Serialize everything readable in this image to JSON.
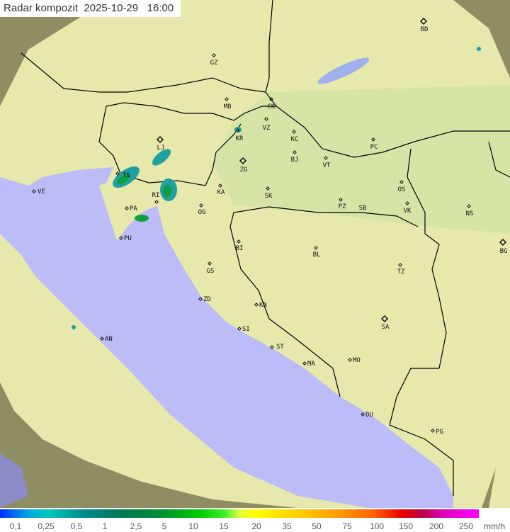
{
  "title": {
    "product": "Radar kompozit",
    "date": "2025-10-29",
    "time": "16:00"
  },
  "colors": {
    "sea": "#bcbcf8",
    "land_in_range": "#e6e8ac",
    "land_out_of_range": "#8e8e62",
    "border": "#000000",
    "echo_teal": "#20a0a0",
    "echo_green": "#10a040"
  },
  "cities": [
    "GZ",
    "BD",
    "MB",
    "CK",
    "VZ",
    "KR",
    "KC",
    "LJ",
    "PC",
    "ZG",
    "BJ",
    "VT",
    "TS",
    "VE",
    "RI",
    "KA",
    "SK",
    "OS",
    "VK",
    "NS",
    "PZ",
    "SB",
    "PA",
    "OG",
    "PU",
    "BI",
    "BL",
    "BG",
    "GS",
    "TZ",
    "ZD",
    "KN",
    "SA",
    "SI",
    "AN",
    "ST",
    "MA",
    "MO",
    "DU",
    "PG"
  ],
  "legend": {
    "values": [
      "0,1",
      "0,25",
      "0,5",
      "1",
      "2,5",
      "5",
      "10",
      "15",
      "20",
      "35",
      "50",
      "75",
      "100",
      "150",
      "200",
      "250"
    ],
    "unit": "mm/h"
  }
}
